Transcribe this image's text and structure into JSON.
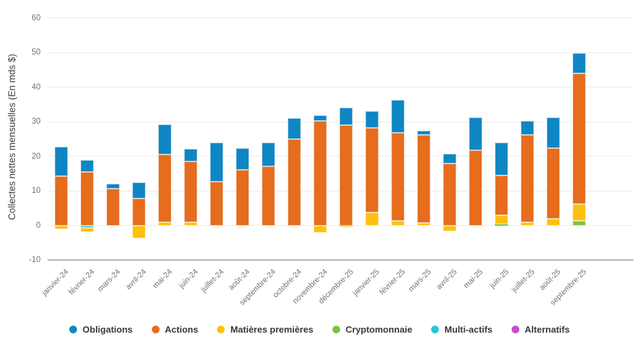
{
  "chart_data": {
    "type": "bar",
    "stacked": true,
    "title": "",
    "ylabel": "Collectes nettes mensuelles (En mds $)",
    "xlabel": "",
    "ylim": [
      -10,
      60
    ],
    "yticks": [
      60,
      50,
      40,
      30,
      20,
      10,
      0,
      -10
    ],
    "grid": "horizontal",
    "legend_position": "bottom",
    "categories": [
      "janvier-24",
      "février-24",
      "mars-24",
      "avril-24",
      "mai-24",
      "juin-24",
      "juillet-24",
      "août-24",
      "septembre-24",
      "octobre-24",
      "novembre-24",
      "décembre-25",
      "janvier-25",
      "février-25",
      "mars-25",
      "avril-25",
      "mai-25",
      "juin-25",
      "juillet-25",
      "août-25",
      "septembre-25"
    ],
    "series": [
      {
        "name": "Obligations",
        "color": "#0E86C4",
        "values": [
          8.5,
          3.5,
          1.3,
          4.6,
          8.8,
          3.7,
          11.3,
          6.2,
          6.8,
          6.0,
          1.7,
          5.0,
          4.7,
          9.3,
          1.4,
          2.7,
          9.4,
          9.5,
          4.1,
          9.0,
          5.9
        ]
      },
      {
        "name": "Actions",
        "color": "#E66C1E",
        "values": [
          14.2,
          15.5,
          10.7,
          7.9,
          19.5,
          17.5,
          12.6,
          16.1,
          17.2,
          25.0,
          30.2,
          29.0,
          24.6,
          25.6,
          25.4,
          18.0,
          21.8,
          11.4,
          25.2,
          20.4,
          37.8
        ]
      },
      {
        "name": "Matières premières",
        "color": "#FDC10D",
        "values": [
          -1.0,
          -1.1,
          0,
          -3.6,
          1.0,
          1.0,
          0,
          0,
          0,
          0,
          -2.0,
          -0.3,
          3.7,
          1.3,
          0.7,
          -1.6,
          0,
          2.6,
          1.0,
          1.9,
          4.9
        ]
      },
      {
        "name": "Cryptomonnaie",
        "color": "#7DC242",
        "values": [
          0,
          0,
          0,
          0,
          0,
          0,
          0,
          0,
          0,
          0,
          0,
          0,
          0,
          0,
          0,
          0,
          0,
          0.4,
          0,
          0,
          1.3
        ]
      },
      {
        "name": "Multi-actifs",
        "color": "#27C6D8",
        "values": [
          0,
          -0.7,
          0,
          0,
          0,
          0,
          0,
          0,
          0,
          0,
          0,
          0,
          0,
          0,
          0,
          0,
          0,
          0,
          0,
          0,
          0
        ]
      },
      {
        "name": "Alternatifs",
        "color": "#C44FC8",
        "values": [
          0,
          0,
          0,
          0,
          0,
          0,
          0,
          0,
          0,
          0,
          0,
          0,
          0,
          0,
          0,
          0,
          0,
          0,
          0,
          0,
          0
        ]
      }
    ]
  }
}
